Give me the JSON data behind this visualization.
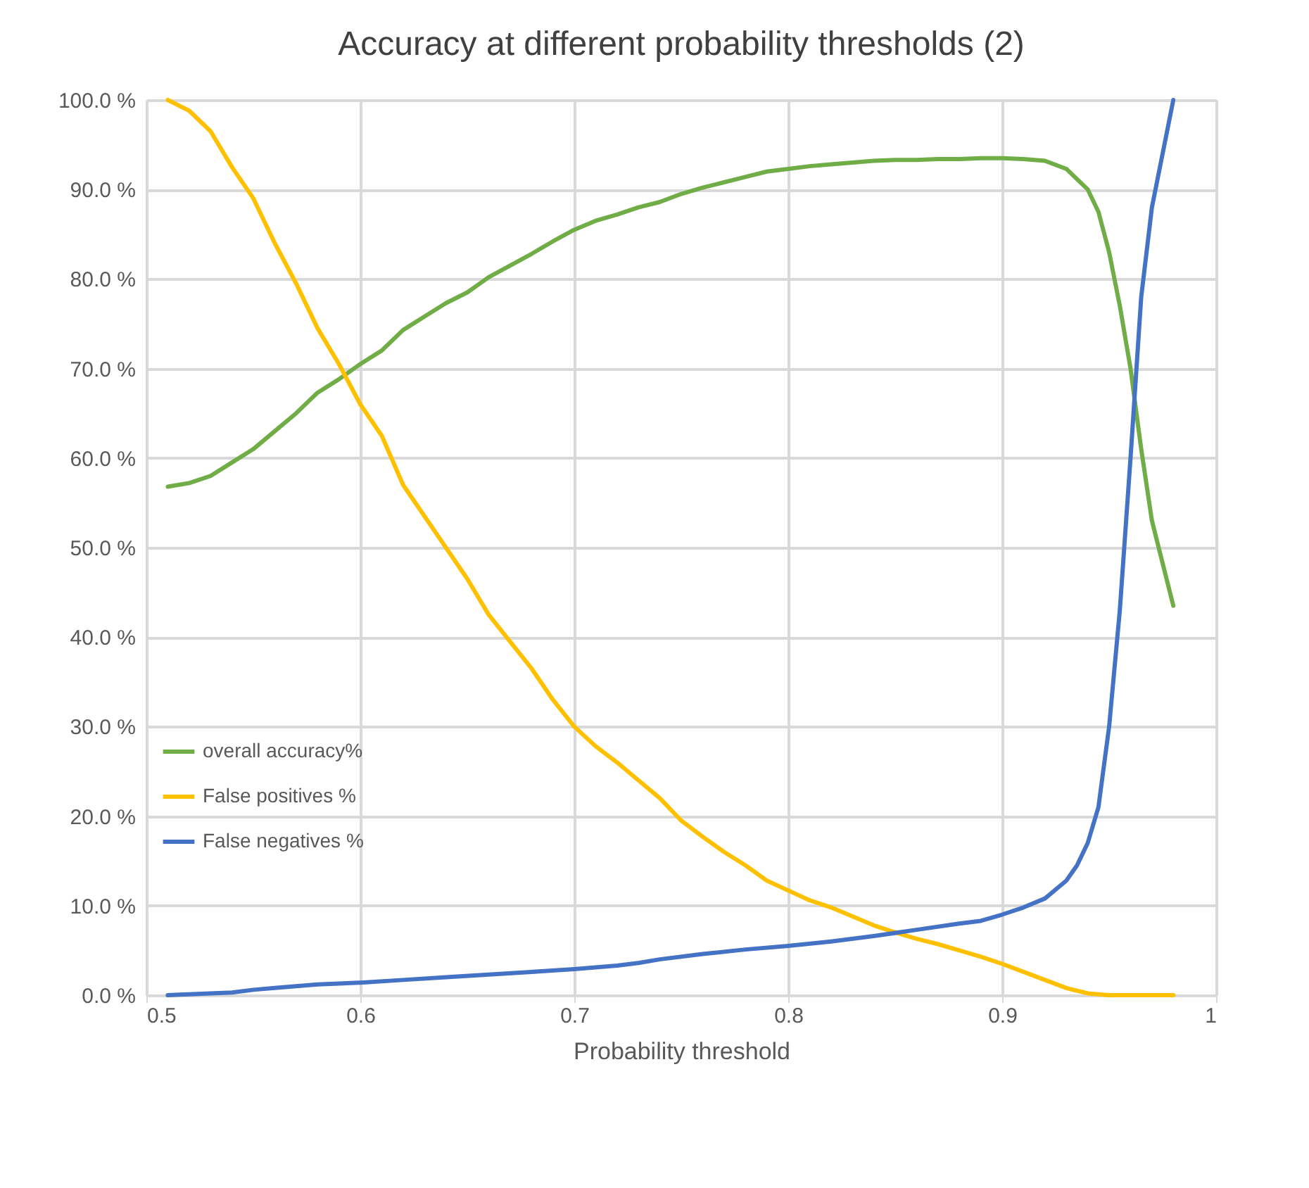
{
  "chart_data": {
    "type": "line",
    "title": "Accuracy at different probability thresholds (2)",
    "xlabel": "Probability threshold",
    "xlim": [
      0.5,
      1
    ],
    "xticks": [
      0.5,
      0.6,
      0.7,
      0.8,
      0.9,
      {
        "value": 1,
        "label": "1"
      }
    ],
    "ylim": [
      0,
      100
    ],
    "yticks": [
      {
        "value": 0,
        "label": "0.0 %"
      },
      {
        "value": 10,
        "label": "10.0 %"
      },
      {
        "value": 20,
        "label": "20.0 %"
      },
      {
        "value": 30,
        "label": "30.0 %"
      },
      {
        "value": 40,
        "label": "40.0 %"
      },
      {
        "value": 50,
        "label": "50.0 %"
      },
      {
        "value": 60,
        "label": "60.0 %"
      },
      {
        "value": 70,
        "label": "70.0 %"
      },
      {
        "value": 80,
        "label": "80.0 %"
      },
      {
        "value": 90,
        "label": "90.0 %"
      },
      {
        "value": 100,
        "label": "100.0 %"
      }
    ],
    "grid": true,
    "legend": "bottom left",
    "marker": "none",
    "line_style": "solid",
    "series": [
      {
        "name": "overall accuracy%",
        "color": "#70ad47",
        "x": [
          0.51,
          0.52,
          0.53,
          0.54,
          0.55,
          0.56,
          0.57,
          0.58,
          0.59,
          0.6,
          0.61,
          0.62,
          0.63,
          0.64,
          0.65,
          0.66,
          0.67,
          0.68,
          0.69,
          0.7,
          0.71,
          0.72,
          0.73,
          0.74,
          0.75,
          0.76,
          0.77,
          0.78,
          0.79,
          0.8,
          0.81,
          0.82,
          0.83,
          0.84,
          0.85,
          0.86,
          0.87,
          0.88,
          0.89,
          0.9,
          0.91,
          0.92,
          0.93,
          0.94,
          0.945,
          0.95,
          0.955,
          0.96,
          0.965,
          0.97,
          0.98
        ],
        "values": [
          56.8,
          57.2,
          58,
          59.5,
          61,
          63,
          65,
          67.3,
          68.8,
          70.5,
          72,
          74.3,
          75.8,
          77.3,
          78.5,
          80.2,
          81.5,
          82.8,
          84.2,
          85.5,
          86.5,
          87.2,
          88,
          88.6,
          89.5,
          90.2,
          90.8,
          91.4,
          92,
          92.3,
          92.6,
          92.8,
          93,
          93.2,
          93.3,
          93.3,
          93.4,
          93.4,
          93.5,
          93.5,
          93.4,
          93.2,
          92.3,
          90,
          87.5,
          83,
          77,
          70,
          61,
          53,
          43.5
        ]
      },
      {
        "name": "False positives %",
        "color": "#ffc000",
        "x": [
          0.51,
          0.52,
          0.53,
          0.54,
          0.55,
          0.56,
          0.57,
          0.58,
          0.59,
          0.6,
          0.61,
          0.62,
          0.63,
          0.64,
          0.65,
          0.66,
          0.67,
          0.68,
          0.69,
          0.7,
          0.71,
          0.72,
          0.73,
          0.74,
          0.75,
          0.76,
          0.77,
          0.78,
          0.79,
          0.8,
          0.81,
          0.82,
          0.83,
          0.84,
          0.85,
          0.86,
          0.87,
          0.88,
          0.89,
          0.9,
          0.91,
          0.92,
          0.93,
          0.94,
          0.95,
          0.96,
          0.97,
          0.98
        ],
        "values": [
          100,
          98.8,
          96.5,
          92.5,
          89,
          84,
          79.5,
          74.5,
          70.5,
          66,
          62.5,
          57,
          53.5,
          50,
          46.5,
          42.5,
          39.5,
          36.5,
          33,
          30,
          27.8,
          26,
          24,
          22,
          19.5,
          17.7,
          16,
          14.5,
          12.8,
          11.7,
          10.6,
          9.8,
          8.8,
          7.8,
          7,
          6.3,
          5.7,
          5,
          4.3,
          3.5,
          2.6,
          1.7,
          0.8,
          0.2,
          0,
          0,
          0,
          0
        ]
      },
      {
        "name": "False negatives %",
        "color": "#4472c4",
        "x": [
          0.51,
          0.52,
          0.53,
          0.54,
          0.55,
          0.56,
          0.57,
          0.58,
          0.59,
          0.6,
          0.62,
          0.64,
          0.66,
          0.68,
          0.7,
          0.72,
          0.73,
          0.74,
          0.76,
          0.78,
          0.8,
          0.82,
          0.84,
          0.86,
          0.88,
          0.89,
          0.9,
          0.91,
          0.92,
          0.93,
          0.935,
          0.94,
          0.945,
          0.95,
          0.955,
          0.96,
          0.965,
          0.97,
          0.98
        ],
        "values": [
          0,
          0.1,
          0.2,
          0.3,
          0.6,
          0.8,
          1.0,
          1.2,
          1.3,
          1.4,
          1.7,
          2.0,
          2.3,
          2.6,
          2.9,
          3.3,
          3.6,
          4.0,
          4.6,
          5.1,
          5.5,
          6.0,
          6.6,
          7.3,
          8.0,
          8.3,
          9.0,
          9.8,
          10.8,
          12.8,
          14.5,
          17,
          21,
          30,
          43,
          60,
          78,
          88,
          100
        ]
      }
    ]
  }
}
